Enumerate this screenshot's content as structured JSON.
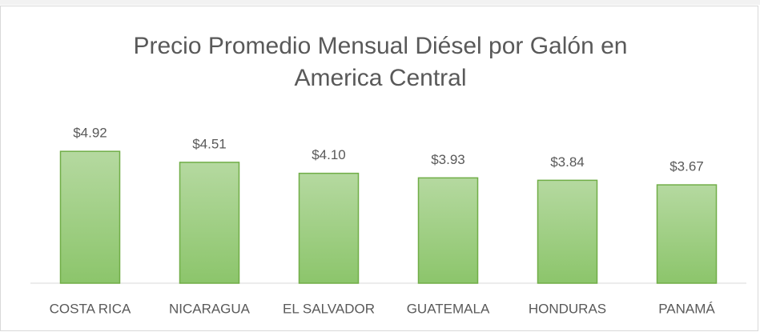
{
  "chart_data": {
    "type": "bar",
    "title": "Precio Promedio Mensual Diésel por Galón en America Central",
    "categories": [
      "COSTA RICA",
      "NICARAGUA",
      "EL SALVADOR",
      "GUATEMALA",
      "HONDURAS",
      "PANAMÁ"
    ],
    "values": [
      4.92,
      4.51,
      4.1,
      3.93,
      3.84,
      3.67
    ],
    "value_labels": [
      "$4.92",
      "$4.51",
      "$4.10",
      "$3.93",
      "$3.84",
      "$3.67"
    ],
    "color": "#70ad47",
    "ylim": [
      0,
      6
    ]
  }
}
